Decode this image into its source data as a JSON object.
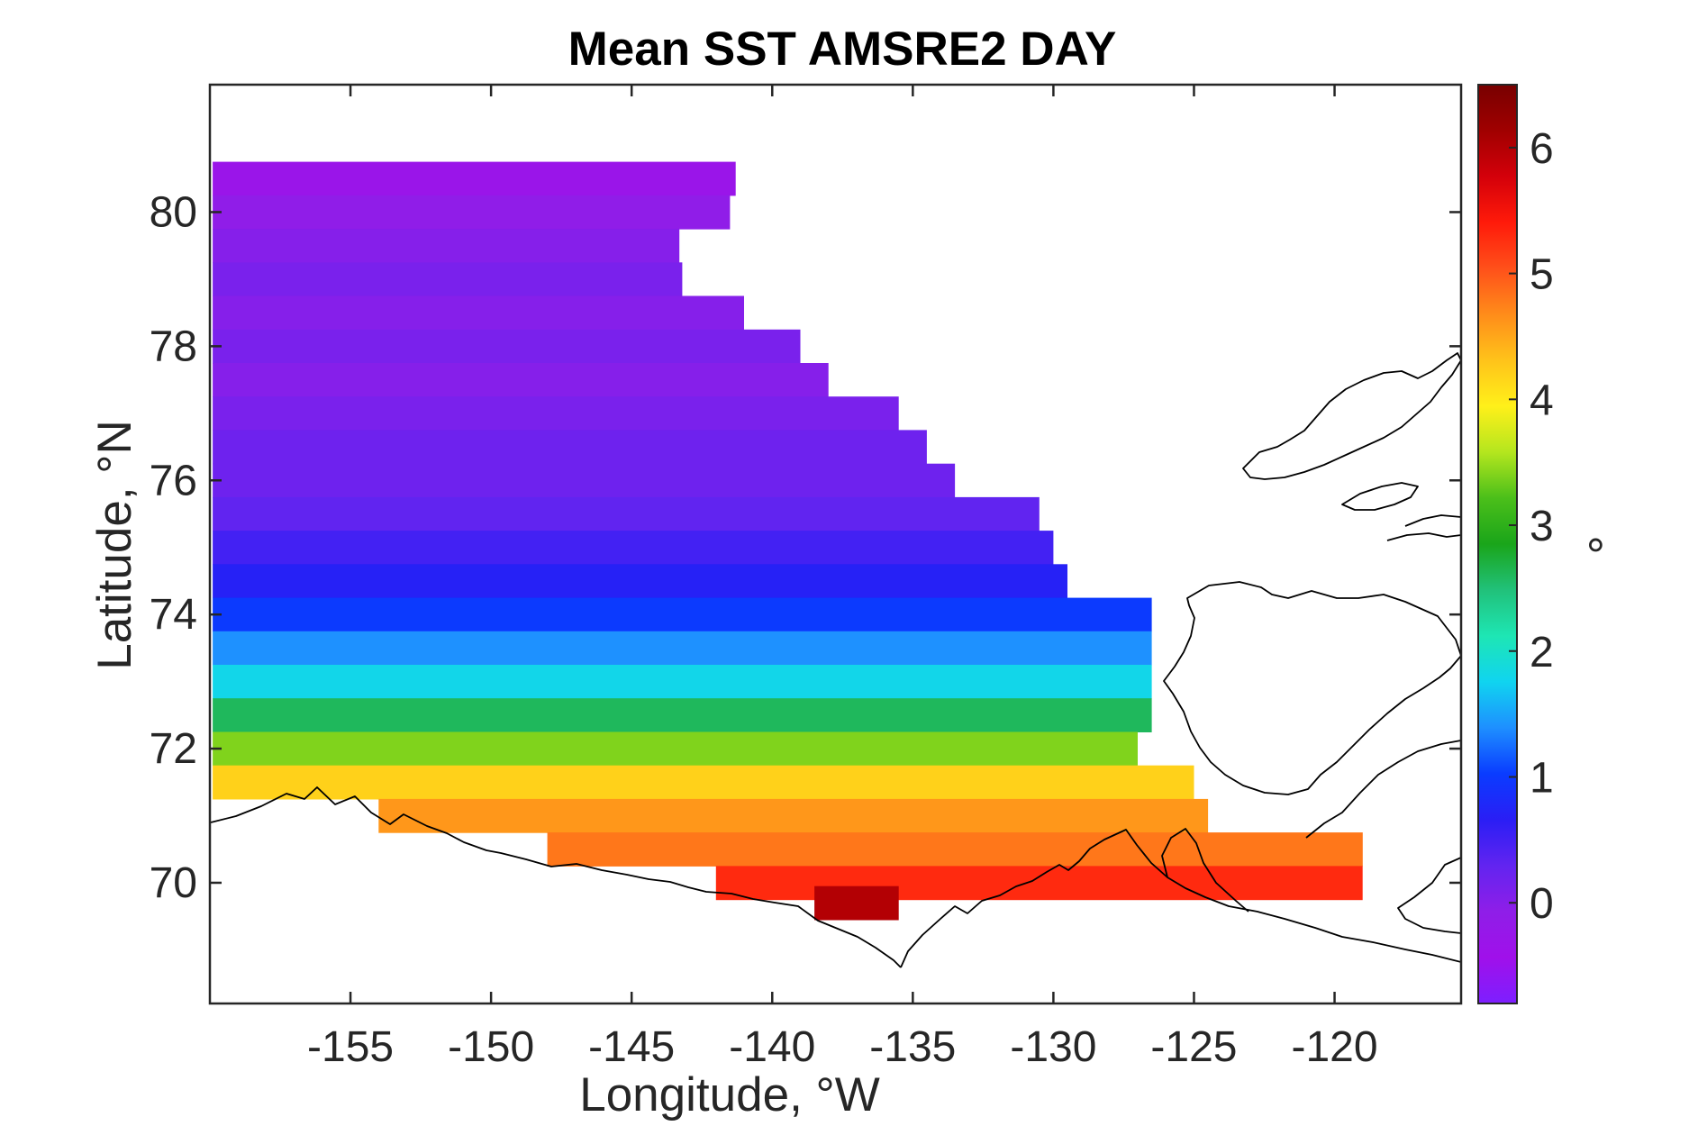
{
  "chart_data": {
    "type": "heatmap",
    "title": "Mean SST AMSRE2 DAY",
    "xlabel": "Longitude, °W",
    "ylabel": "Latitude, °N",
    "colorbar_label": "°",
    "xlim": [
      -160,
      -115.5
    ],
    "ylim": [
      68.2,
      81.9
    ],
    "x_ticks": [
      -155,
      -150,
      -145,
      -140,
      -135,
      -130,
      -125,
      -120
    ],
    "y_ticks": [
      70,
      72,
      74,
      76,
      78,
      80
    ],
    "color_range": [
      -0.8,
      6.5
    ],
    "colorbar_ticks": [
      0,
      1,
      2,
      3,
      4,
      5,
      6
    ],
    "colormap": [
      "#7d1fff",
      "#a010ea",
      "#8f1ee8",
      "#6224f0",
      "#2a1ef5",
      "#0a3cff",
      "#1e8fff",
      "#10d4f0",
      "#1ee6b4",
      "#21c17a",
      "#1aa51a",
      "#4bbf1a",
      "#b4e61e",
      "#fff01a",
      "#ffc31a",
      "#ff8c1a",
      "#ff501a",
      "#ff1a0a",
      "#d4000a",
      "#a00000",
      "#780000"
    ],
    "grid": false,
    "region_mean_sst": [
      {
        "lat": 80.5,
        "lon_range": [
          -159.9,
          -141.3
        ],
        "value": -0.3
      },
      {
        "lat": 80.0,
        "lon_range": [
          -159.9,
          -141.5
        ],
        "value": -0.1
      },
      {
        "lat": 79.5,
        "lon_range": [
          -159.9,
          -143.3
        ],
        "value": 0.0
      },
      {
        "lat": 79.0,
        "lon_range": [
          -159.9,
          -143.2
        ],
        "value": 0.1
      },
      {
        "lat": 78.5,
        "lon_range": [
          -159.9,
          -141.0
        ],
        "value": 0.0
      },
      {
        "lat": 78.0,
        "lon_range": [
          -159.9,
          -139.0
        ],
        "value": 0.1
      },
      {
        "lat": 77.5,
        "lon_range": [
          -159.9,
          -138.0
        ],
        "value": 0.0
      },
      {
        "lat": 77.0,
        "lon_range": [
          -159.9,
          -135.5
        ],
        "value": 0.1
      },
      {
        "lat": 76.5,
        "lon_range": [
          -159.9,
          -134.5
        ],
        "value": 0.2
      },
      {
        "lat": 76.0,
        "lon_range": [
          -159.9,
          -133.5
        ],
        "value": 0.2
      },
      {
        "lat": 75.5,
        "lon_range": [
          -159.9,
          -130.5
        ],
        "value": 0.3
      },
      {
        "lat": 75.0,
        "lon_range": [
          -159.9,
          -130.0
        ],
        "value": 0.5
      },
      {
        "lat": 74.5,
        "lon_range": [
          -159.9,
          -129.5
        ],
        "value": 0.7
      },
      {
        "lat": 74.0,
        "lon_range": [
          -159.9,
          -126.5
        ],
        "value": 1.0
      },
      {
        "lat": 73.5,
        "lon_range": [
          -159.9,
          -126.5
        ],
        "value": 1.4
      },
      {
        "lat": 73.0,
        "lon_range": [
          -159.9,
          -126.5
        ],
        "value": 1.8
      },
      {
        "lat": 72.5,
        "lon_range": [
          -159.9,
          -126.5
        ],
        "value": 2.6
      },
      {
        "lat": 72.0,
        "lon_range": [
          -159.9,
          -127.0
        ],
        "value": 3.4
      },
      {
        "lat": 71.5,
        "lon_range": [
          -159.9,
          -125.0
        ],
        "value": 4.2
      },
      {
        "lat": 71.0,
        "lon_range": [
          -154.0,
          -124.5
        ],
        "value": 4.6
      },
      {
        "lat": 70.5,
        "lon_range": [
          -148.0,
          -119.0
        ],
        "value": 4.8
      },
      {
        "lat": 70.0,
        "lon_range": [
          -142.0,
          -119.0
        ],
        "value": 5.3
      },
      {
        "lat": 69.7,
        "lon_range": [
          -138.5,
          -135.5
        ],
        "value": 6.0
      }
    ]
  }
}
